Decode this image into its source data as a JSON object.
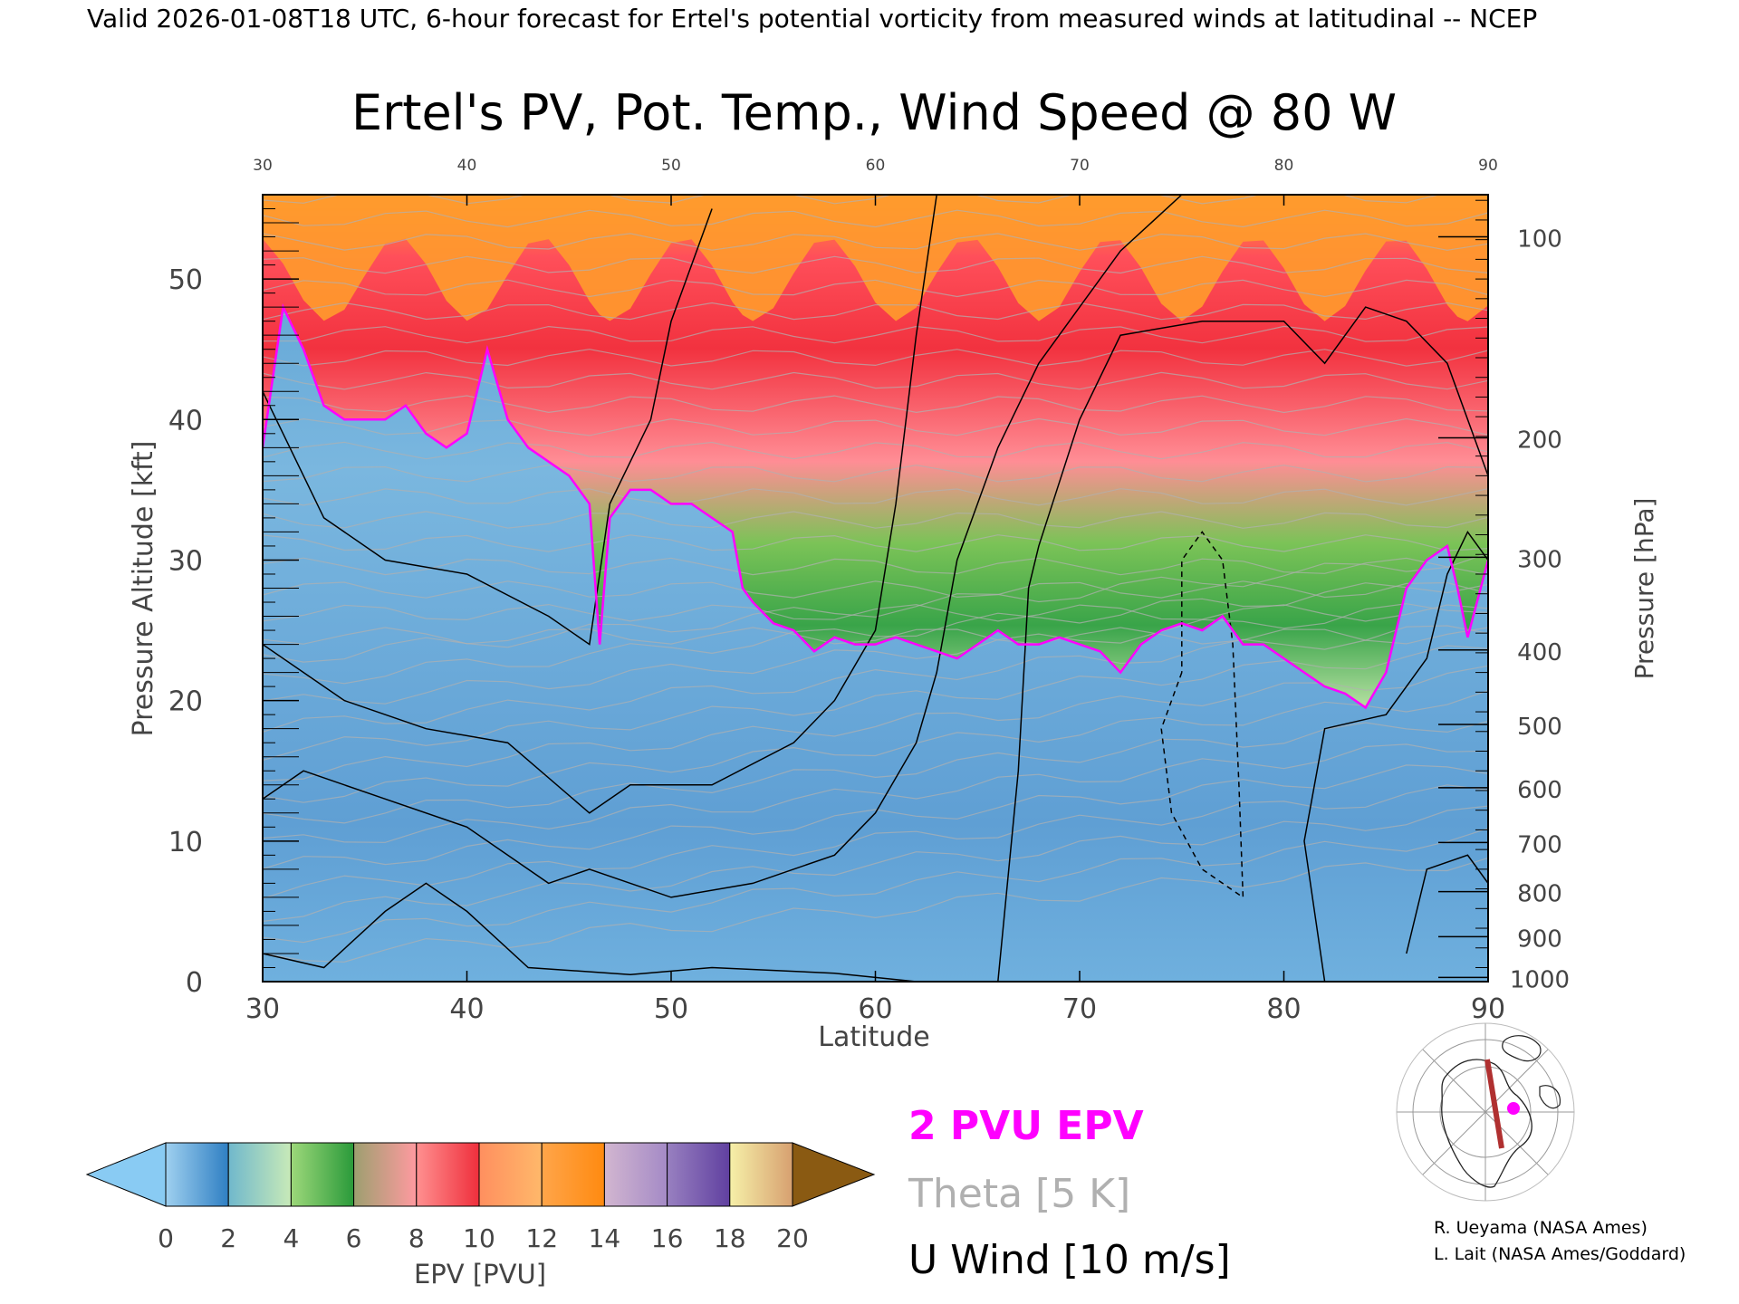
{
  "header": {
    "valid_line": "Valid 2026-01-08T18 UTC, 6-hour forecast for Ertel's potential vorticity from measured winds at latitudinal -- NCEP"
  },
  "chart_data": {
    "type": "heatmap",
    "title": "Ertel's PV, Pot. Temp., Wind Speed @ 80 W",
    "xlabel": "Latitude",
    "ylabel": "Pressure Altitude [kft]",
    "y2label": "Pressure [hPa]",
    "xlim": [
      30,
      90
    ],
    "ylim": [
      0,
      56
    ],
    "x_ticks": [
      30,
      40,
      50,
      60,
      70,
      80,
      90
    ],
    "x_tick_labels": [
      "30",
      "40",
      "50",
      "60",
      "70",
      "80",
      "90"
    ],
    "y_ticks": [
      0,
      10,
      20,
      30,
      40,
      50
    ],
    "y_tick_labels": [
      "0",
      "10",
      "20",
      "30",
      "40",
      "50"
    ],
    "pressure_ticks": [
      {
        "hpa": "100",
        "kft": 53.0
      },
      {
        "hpa": "200",
        "kft": 38.7
      },
      {
        "hpa": "300",
        "kft": 30.2
      },
      {
        "hpa": "400",
        "kft": 23.6
      },
      {
        "hpa": "500",
        "kft": 18.3
      },
      {
        "hpa": "600",
        "kft": 13.8
      },
      {
        "hpa": "700",
        "kft": 9.9
      },
      {
        "hpa": "800",
        "kft": 6.4
      },
      {
        "hpa": "900",
        "kft": 3.2
      },
      {
        "hpa": "1000",
        "kft": 0.3
      }
    ],
    "tropopause_2pvu_kft": [
      [
        30,
        38
      ],
      [
        31,
        48
      ],
      [
        32,
        45
      ],
      [
        33,
        41
      ],
      [
        34,
        40
      ],
      [
        35,
        40
      ],
      [
        36,
        40
      ],
      [
        37,
        41
      ],
      [
        38,
        39
      ],
      [
        39,
        38
      ],
      [
        40,
        39
      ],
      [
        41,
        45
      ],
      [
        42,
        40
      ],
      [
        43,
        38
      ],
      [
        44,
        37
      ],
      [
        45,
        36
      ],
      [
        46,
        34
      ],
      [
        46.5,
        24
      ],
      [
        47,
        33
      ],
      [
        48,
        35
      ],
      [
        49,
        35
      ],
      [
        50,
        34
      ],
      [
        51,
        34
      ],
      [
        52,
        33
      ],
      [
        53,
        32
      ],
      [
        53.5,
        28
      ],
      [
        54,
        27
      ],
      [
        55,
        25.5
      ],
      [
        56,
        25
      ],
      [
        57,
        23.5
      ],
      [
        58,
        24.5
      ],
      [
        59,
        24
      ],
      [
        60,
        24
      ],
      [
        61,
        24.5
      ],
      [
        62,
        24
      ],
      [
        63,
        23.5
      ],
      [
        64,
        23
      ],
      [
        65,
        24
      ],
      [
        66,
        25
      ],
      [
        67,
        24
      ],
      [
        68,
        24
      ],
      [
        69,
        24.5
      ],
      [
        70,
        24
      ],
      [
        71,
        23.5
      ],
      [
        72,
        22
      ],
      [
        73,
        24
      ],
      [
        74,
        25
      ],
      [
        75,
        25.5
      ],
      [
        76,
        25
      ],
      [
        77,
        26
      ],
      [
        78,
        24
      ],
      [
        79,
        24
      ],
      [
        80,
        23
      ],
      [
        81,
        22
      ],
      [
        82,
        21
      ],
      [
        83,
        20.5
      ],
      [
        84,
        19.5
      ],
      [
        85,
        22
      ],
      [
        86,
        28
      ],
      [
        87,
        30
      ],
      [
        88,
        31
      ],
      [
        88.5,
        28
      ],
      [
        89,
        24.5
      ],
      [
        90,
        30
      ]
    ],
    "colorbar": {
      "label": "EPV [PVU]",
      "ticks": [
        "0",
        "2",
        "4",
        "6",
        "8",
        "10",
        "12",
        "14",
        "16",
        "18",
        "20"
      ],
      "bins": [
        {
          "from": 0,
          "to": 2,
          "colors": [
            "#9fd0ef",
            "#2f7fc3"
          ]
        },
        {
          "from": 2,
          "to": 4,
          "colors": [
            "#70b8cc",
            "#c8eab8"
          ]
        },
        {
          "from": 4,
          "to": 6,
          "colors": [
            "#9dd87a",
            "#2a9a3a"
          ]
        },
        {
          "from": 6,
          "to": 8,
          "colors": [
            "#9d9f6f",
            "#ff9aa0"
          ]
        },
        {
          "from": 8,
          "to": 10,
          "colors": [
            "#ff9090",
            "#ef2f3c"
          ]
        },
        {
          "from": 10,
          "to": 12,
          "colors": [
            "#ff8f5f",
            "#ffb86a"
          ]
        },
        {
          "from": 12,
          "to": 14,
          "colors": [
            "#ffa54a",
            "#ff8a10"
          ]
        },
        {
          "from": 14,
          "to": 16,
          "colors": [
            "#d2b6d0",
            "#a48ac6"
          ]
        },
        {
          "from": 16,
          "to": 18,
          "colors": [
            "#9880c0",
            "#6040a0"
          ]
        },
        {
          "from": 18,
          "to": 20,
          "colors": [
            "#f6f0a8",
            "#d7a070"
          ]
        }
      ],
      "under_color": "#89cbf3",
      "over_color": "#8a5a12"
    }
  },
  "legend": {
    "pvu_line": "2 PVU EPV",
    "pvu_color": "#ff00ff",
    "theta_line": "Theta [5 K]",
    "theta_color": "#b0b0b0",
    "wind_line": "U Wind [10 m/s]",
    "wind_color": "#000000"
  },
  "credits": {
    "line1": "R. Ueyama (NASA Ames)",
    "line2": "L. Lait (NASA Ames/Goddard)"
  }
}
